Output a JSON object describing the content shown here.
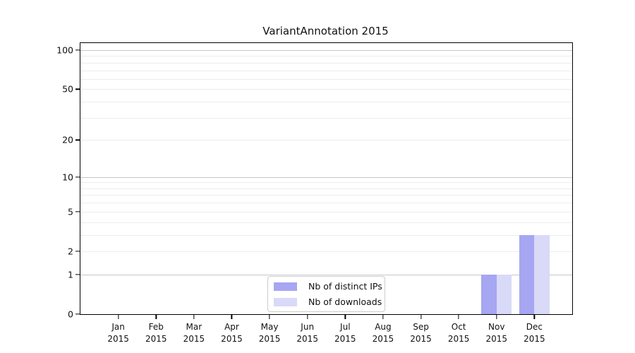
{
  "title": "VariantAnnotation 2015",
  "chart_data": {
    "type": "bar",
    "title": "VariantAnnotation 2015",
    "categories": [
      "Jan 2015",
      "Feb 2015",
      "Mar 2015",
      "Apr 2015",
      "May 2015",
      "Jun 2015",
      "Jul 2015",
      "Aug 2015",
      "Sep 2015",
      "Oct 2015",
      "Nov 2015",
      "Dec 2015"
    ],
    "series": [
      {
        "name": "Nb of distinct IPs",
        "color": "#a6a6f2",
        "values": [
          0,
          0,
          0,
          0,
          0,
          0,
          0,
          0,
          0,
          0,
          1,
          3
        ]
      },
      {
        "name": "Nb of downloads",
        "color": "#d9d9f8",
        "values": [
          0,
          0,
          0,
          0,
          0,
          0,
          0,
          0,
          0,
          0,
          1,
          3
        ]
      }
    ],
    "yticks": [
      0,
      1,
      2,
      5,
      10,
      20,
      50,
      100
    ],
    "grid_major": [
      1,
      10,
      100
    ],
    "grid_minor": [
      2,
      3,
      4,
      5,
      6,
      7,
      8,
      9,
      20,
      30,
      40,
      50,
      60,
      70,
      80,
      90
    ],
    "scale": "log1p",
    "ylim": [
      0,
      100
    ],
    "grid": "horizontal",
    "legend_position": "inside-bottom-center",
    "xlabel": "",
    "ylabel": ""
  }
}
